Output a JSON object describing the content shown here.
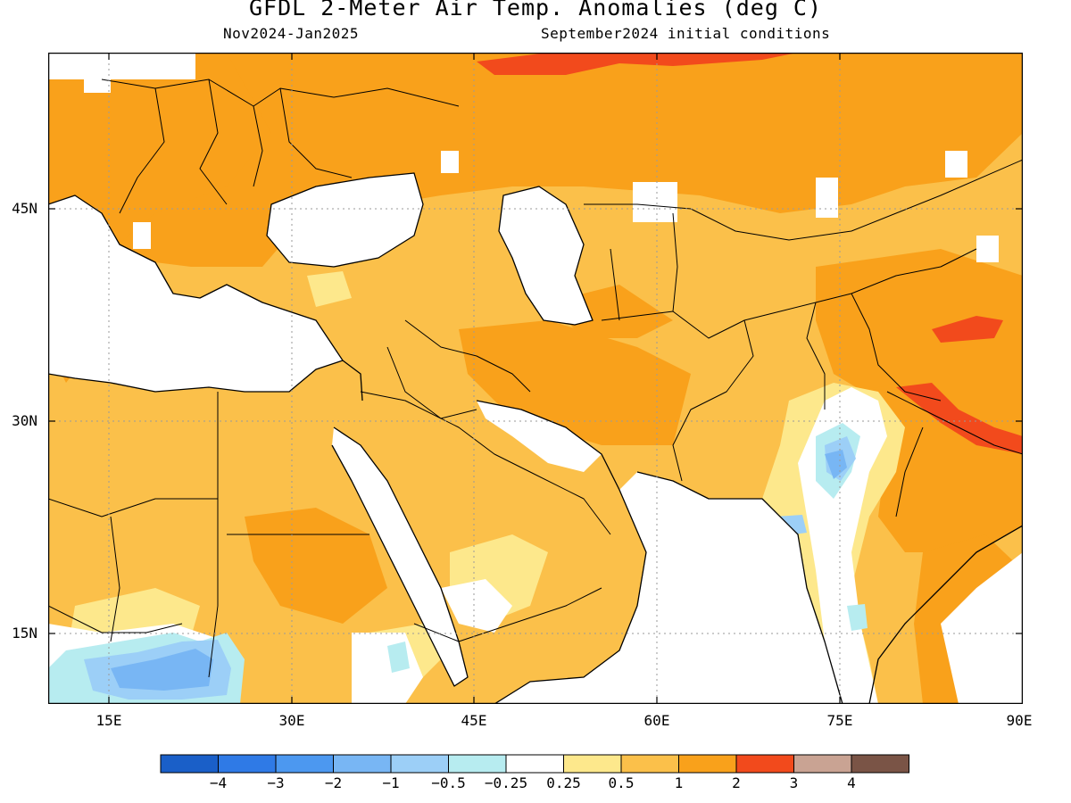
{
  "header": {
    "title": "GFDL 2-Meter Air Temp. Anomalies (deg C)",
    "period": "Nov2024-Jan2025",
    "init": "September2024 initial conditions"
  },
  "axes": {
    "lat_labels": [
      "45N",
      "30N",
      "15N"
    ],
    "lon_labels": [
      "15E",
      "30E",
      "45E",
      "60E",
      "75E",
      "90E"
    ]
  },
  "colorbar": {
    "colors": [
      "#1a5fc8",
      "#2f7ae6",
      "#4c98f0",
      "#78b6f4",
      "#9ccff7",
      "#b7ecf0",
      "#ffffff",
      "#fde88c",
      "#fbc04a",
      "#f9a11b",
      "#f24a1c",
      "#c9a393",
      "#7a5446"
    ],
    "labels": [
      "-4",
      "-3",
      "-2",
      "-1",
      "-0.5",
      "-0.25",
      "0.25",
      "0.5",
      "1",
      "2",
      "3",
      "4"
    ]
  },
  "map_colors": {
    "ocean": "#ffffff",
    "light_orange": "#fbc04a",
    "orange": "#f9a11b",
    "red": "#f24a1c",
    "yellow": "#fde88c",
    "light_blue": "#9ccff7",
    "blue": "#78b6f4",
    "cyan": "#b7ecf0"
  }
}
